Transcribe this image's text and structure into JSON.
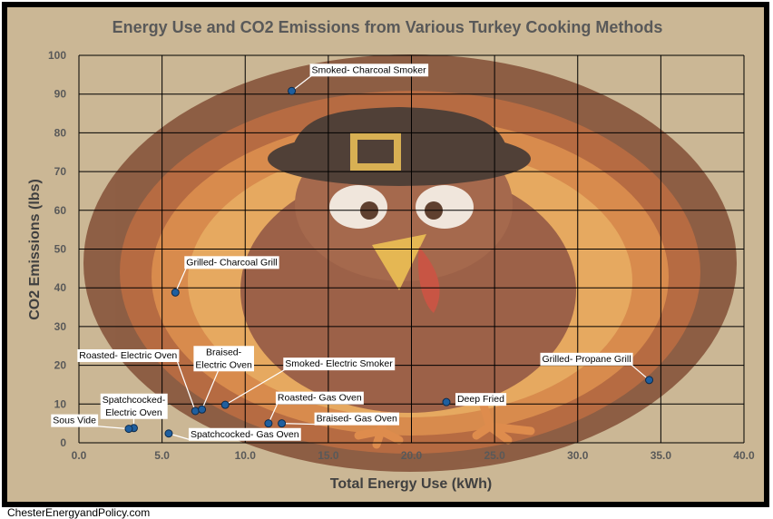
{
  "chart_data": {
    "type": "scatter",
    "title": "Energy Use and CO2 Emissions from Various Turkey Cooking Methods",
    "xlabel": "Total Energy Use (kWh)",
    "ylabel": "CO2 Emissions (lbs)",
    "xlim": [
      0,
      40
    ],
    "ylim": [
      0,
      100
    ],
    "x_ticks": [
      "0.0",
      "5.0",
      "10.0",
      "15.0",
      "20.0",
      "25.0",
      "30.0",
      "35.0",
      "40.0"
    ],
    "y_ticks": [
      "0",
      "10",
      "20",
      "30",
      "40",
      "50",
      "60",
      "70",
      "80",
      "90",
      "100"
    ],
    "grid": true,
    "points": [
      {
        "label": "Smoked- Charcoal Smoker",
        "x": 12.8,
        "y": 90.8
      },
      {
        "label": "Grilled- Charcoal Grill",
        "x": 5.8,
        "y": 38.8
      },
      {
        "label": "Roasted- Electric Oven",
        "x": 7.0,
        "y": 8.2
      },
      {
        "label": "Braised- Electric Oven",
        "x": 7.4,
        "y": 8.6
      },
      {
        "label": "Smoked- Electric Smoker",
        "x": 8.8,
        "y": 9.8
      },
      {
        "label": "Spatchcocked- Electric Oven",
        "x": 3.3,
        "y": 3.8
      },
      {
        "label": "Sous Vide",
        "x": 3.0,
        "y": 3.6
      },
      {
        "label": "Spatchcocked- Gas Oven",
        "x": 5.4,
        "y": 2.4
      },
      {
        "label": "Roasted- Gas Oven",
        "x": 11.4,
        "y": 5.0
      },
      {
        "label": "Braised- Gas Oven",
        "x": 12.2,
        "y": 5.0
      },
      {
        "label": "Deep Fried",
        "x": 22.1,
        "y": 10.5
      },
      {
        "label": "Grilled- Propane Grill",
        "x": 34.3,
        "y": 16.2
      }
    ],
    "colors": {
      "background": "#cbb795",
      "grid": "#000000",
      "marker_fill": "#1f5f9f",
      "marker_stroke": "#0d2a4a"
    }
  },
  "footer": {
    "source": "ChesterEnergyandPolicy.com"
  }
}
